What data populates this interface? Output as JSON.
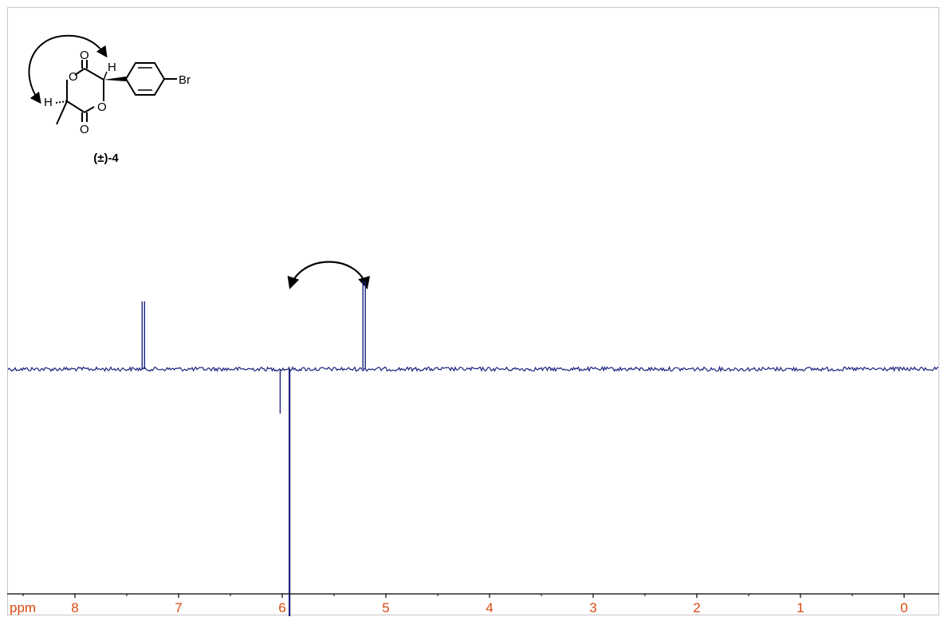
{
  "chart_data": {
    "type": "line",
    "title": "",
    "xlabel": "ppm",
    "ylabel": "",
    "x_axis_reversed": true,
    "xlim": [
      8.5,
      -0.35
    ],
    "xticks": [
      8,
      7,
      6,
      5,
      4,
      3,
      2,
      1,
      0
    ],
    "grid": false,
    "peaks": [
      {
        "ppm": 7.34,
        "direction": "positive",
        "relative_intensity": 0.17,
        "multiplicity": "doublet"
      },
      {
        "ppm": 6.02,
        "direction": "negative",
        "relative_intensity": -0.18,
        "multiplicity": "singlet"
      },
      {
        "ppm": 5.93,
        "direction": "negative",
        "relative_intensity": -1.0,
        "multiplicity": "singlet"
      },
      {
        "ppm": 5.21,
        "direction": "positive",
        "relative_intensity": 0.22,
        "multiplicity": "doublet"
      }
    ],
    "annotations": [
      "NOE correlation arrow between 5.93 and 5.21 ppm"
    ]
  },
  "structure": {
    "compound_label": "(±)-4",
    "atoms": {
      "o1": "O",
      "o2": "O",
      "o3": "O",
      "o4": "O",
      "h1": "H",
      "h2": "H",
      "br": "Br"
    }
  },
  "colors": {
    "spectrum": "#1a237e",
    "axis_labels": "#d9480f",
    "frame": "#c8c8c8"
  }
}
